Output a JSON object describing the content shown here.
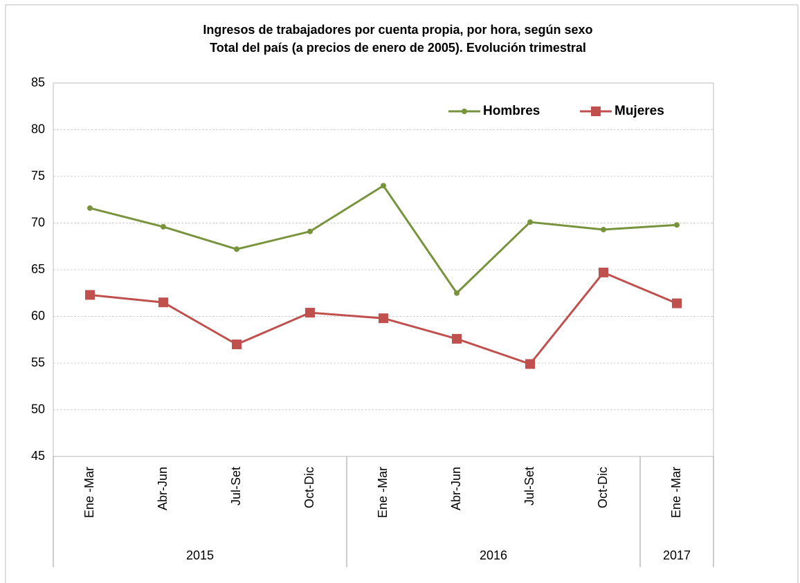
{
  "chart_data": {
    "type": "line",
    "title": [
      "Ingresos de trabajadores por cuenta propia, por hora, según sexo",
      "Total del país (a precios de enero de 2005). Evolución trimestral"
    ],
    "groups": [
      {
        "label": "2015",
        "categories": [
          "Ene -Mar",
          "Abr-Jun",
          "Jul-Set",
          "Oct-Dic"
        ]
      },
      {
        "label": "2016",
        "categories": [
          "Ene -Mar",
          "Abr-Jun",
          "Jul-Set",
          "Oct-Dic"
        ]
      },
      {
        "label": "2017",
        "categories": [
          "Ene -Mar"
        ]
      }
    ],
    "series": [
      {
        "name": "Hombres",
        "color": "#77933c",
        "marker": "circle",
        "values": [
          71.6,
          69.6,
          67.2,
          69.1,
          74.0,
          62.5,
          70.1,
          69.3,
          69.8
        ]
      },
      {
        "name": "Mujeres",
        "color": "#c0504d",
        "marker": "square",
        "values": [
          62.3,
          61.5,
          57.0,
          60.4,
          59.8,
          57.6,
          54.9,
          64.7,
          61.4
        ]
      }
    ],
    "ylim": [
      45,
      85
    ],
    "yticks": [
      45,
      50,
      55,
      60,
      65,
      70,
      75,
      80,
      85
    ],
    "grid": true,
    "legend": "top-right"
  }
}
